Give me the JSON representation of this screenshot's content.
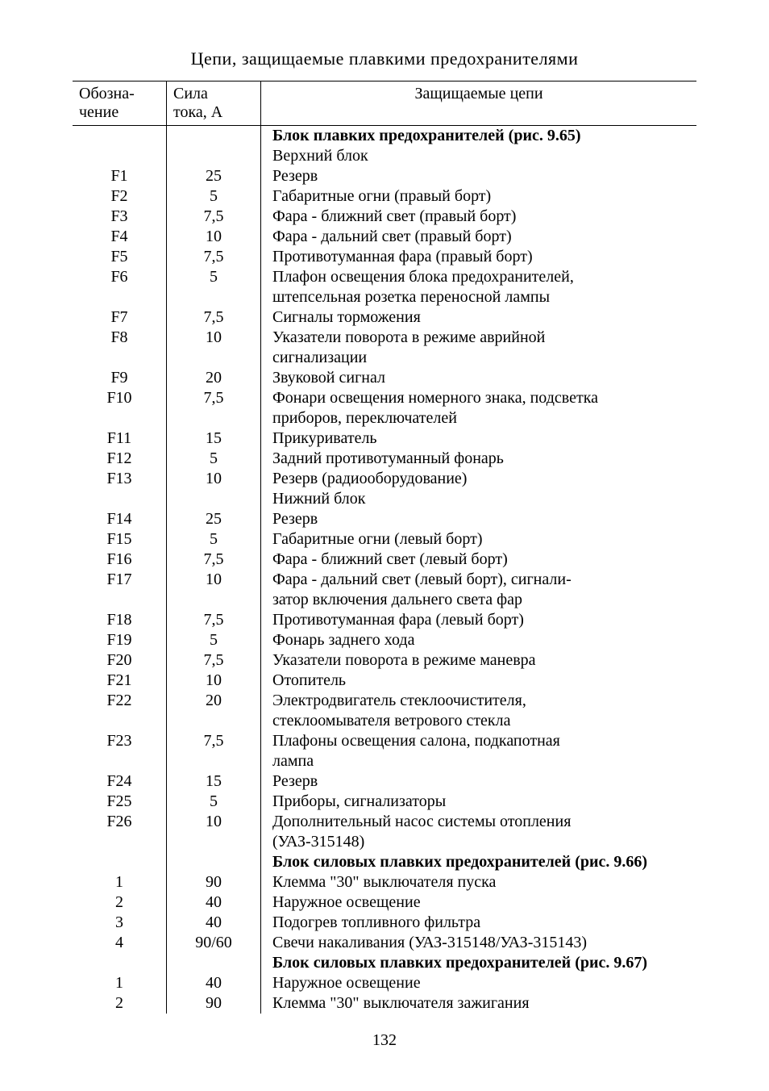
{
  "title": "Цепи, защищаемые плавкими предохранителями",
  "header": {
    "col1a": "Обозна-",
    "col1b": "чение",
    "col2a": "Сила",
    "col2b": "тока, А",
    "col3": "Защищаемые цепи"
  },
  "rows": [
    {
      "c1": "",
      "c2": "",
      "c3": "Блок плавких предохранителей (рис. 9.65)",
      "bold": true
    },
    {
      "c1": "",
      "c2": "",
      "c3": "Верхний блок",
      "indent": true
    },
    {
      "c1": "F1",
      "c2": "25",
      "c3": "Резерв"
    },
    {
      "c1": "F2",
      "c2": "5",
      "c3": "Габаритные огни (правый борт)"
    },
    {
      "c1": "F3",
      "c2": "7,5",
      "c3": "Фара - ближний свет (правый борт)"
    },
    {
      "c1": "F4",
      "c2": "10",
      "c3": "Фара - дальний свет (правый борт)"
    },
    {
      "c1": "F5",
      "c2": "7,5",
      "c3": "Противотуманная фара (правый борт)"
    },
    {
      "c1": "F6",
      "c2": "5",
      "c3": "Плафон освещения блока предохранителей,"
    },
    {
      "c1": "",
      "c2": "",
      "c3": "штепсельная розетка переносной лампы"
    },
    {
      "c1": "F7",
      "c2": "7,5",
      "c3": "Сигналы торможения"
    },
    {
      "c1": "F8",
      "c2": "10",
      "c3": "Указатели поворота в режиме аврийной"
    },
    {
      "c1": "",
      "c2": "",
      "c3": "сигнализации"
    },
    {
      "c1": "F9",
      "c2": "20",
      "c3": "Звуковой сигнал"
    },
    {
      "c1": "F10",
      "c2": "7,5",
      "c3": "Фонари освещения номерного знака, подсветка"
    },
    {
      "c1": "",
      "c2": "",
      "c3": "приборов, переключателей"
    },
    {
      "c1": "F11",
      "c2": "15",
      "c3": "Прикуриватель"
    },
    {
      "c1": "F12",
      "c2": "5",
      "c3": "Задний противотуманный фонарь"
    },
    {
      "c1": "F13",
      "c2": "10",
      "c3": "Резерв (радиооборудование)"
    },
    {
      "c1": "",
      "c2": "",
      "c3": "Нижний блок",
      "indent": true
    },
    {
      "c1": "F14",
      "c2": "25",
      "c3": "Резерв"
    },
    {
      "c1": "F15",
      "c2": "5",
      "c3": "Габаритные огни (левый борт)"
    },
    {
      "c1": "F16",
      "c2": "7,5",
      "c3": "Фара - ближний свет (левый борт)"
    },
    {
      "c1": "F17",
      "c2": "10",
      "c3": "Фара - дальний свет (левый борт), сигнали-"
    },
    {
      "c1": "",
      "c2": "",
      "c3": "затор включения дальнего света фар"
    },
    {
      "c1": "F18",
      "c2": "7,5",
      "c3": "Противотуманная фара (левый борт)"
    },
    {
      "c1": "F19",
      "c2": "5",
      "c3": "Фонарь заднего хода"
    },
    {
      "c1": "F20",
      "c2": "7,5",
      "c3": "Указатели поворота в режиме маневра"
    },
    {
      "c1": "F21",
      "c2": "10",
      "c3": "Отопитель"
    },
    {
      "c1": "F22",
      "c2": "20",
      "c3": "Электродвигатель стеклоочистителя,"
    },
    {
      "c1": "",
      "c2": "",
      "c3": "стеклоомывателя ветрового стекла"
    },
    {
      "c1": "F23",
      "c2": "7,5",
      "c3": "Плафоны освещения салона, подкапотная"
    },
    {
      "c1": "",
      "c2": "",
      "c3": "лампа"
    },
    {
      "c1": "F24",
      "c2": "15",
      "c3": "Резерв"
    },
    {
      "c1": "F25",
      "c2": "5",
      "c3": "Приборы, сигнализаторы"
    },
    {
      "c1": "F26",
      "c2": "10",
      "c3": "Дополнительный насос системы отопления"
    },
    {
      "c1": "",
      "c2": "",
      "c3": "(УАЗ-315148)"
    },
    {
      "c1": "",
      "c2": "",
      "c3": "Блок силовых плавких предохранителей (рис. 9.66)",
      "bold": true
    },
    {
      "c1": "1",
      "c2": "90",
      "c3": "Клемма \"30\" выключателя пуска"
    },
    {
      "c1": "2",
      "c2": "40",
      "c3": "Наружное освещение"
    },
    {
      "c1": "3",
      "c2": "40",
      "c3": "Подогрев топливного фильтра"
    },
    {
      "c1": "4",
      "c2": "90/60",
      "c3": "Свечи накаливания (УАЗ-315148/УАЗ-315143)"
    },
    {
      "c1": "",
      "c2": "",
      "c3": "Блок силовых плавких предохранителей (рис. 9.67)",
      "bold": true
    },
    {
      "c1": "1",
      "c2": "40",
      "c3": "Наружное освещение"
    },
    {
      "c1": "2",
      "c2": "90",
      "c3": "Клемма \"30\" выключателя зажигания"
    }
  ],
  "pageNumber": "132"
}
